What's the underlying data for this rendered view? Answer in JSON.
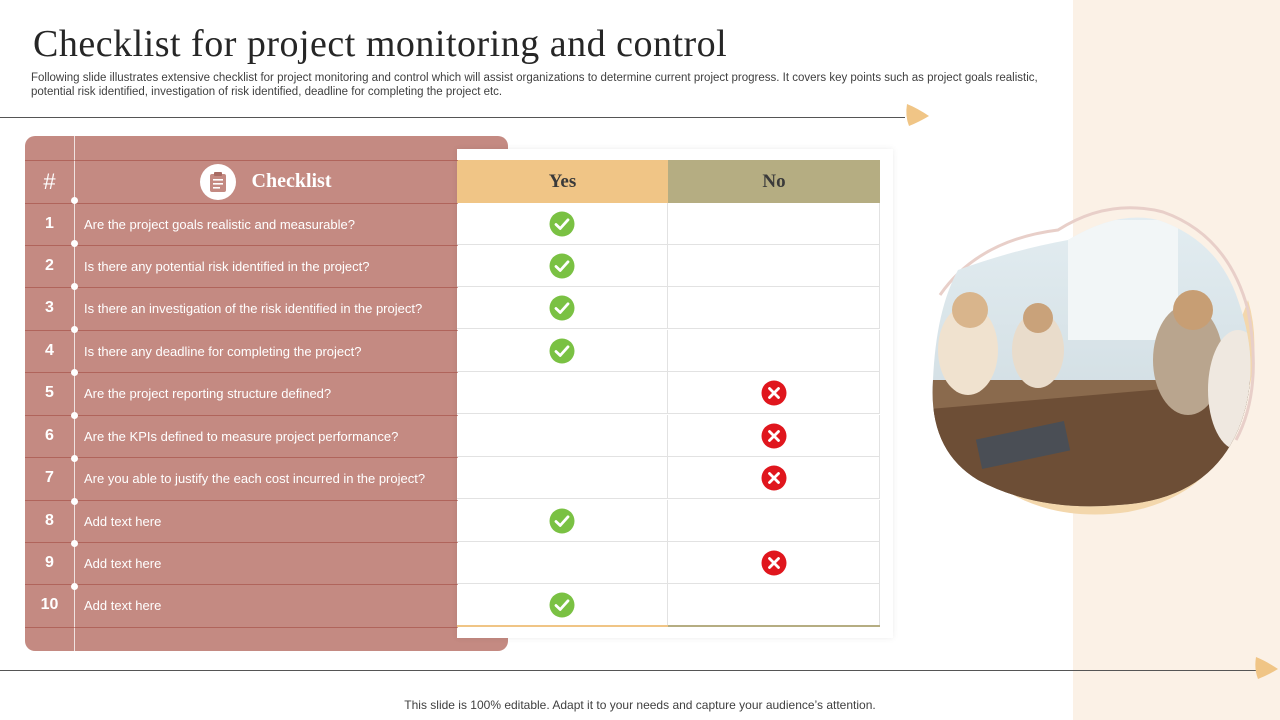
{
  "title": "Checklist for project monitoring and control",
  "subtitle": "Following slide illustrates extensive checklist for project monitoring and control which will assist organizations to determine current project progress. It covers key points such as project goals realistic, potential risk identified, investigation of risk identified, deadline for completing the project etc.",
  "table": {
    "header_number": "#",
    "header_checklist": "Checklist",
    "header_yes": "Yes",
    "header_no": "No",
    "rows": [
      {
        "num": "1",
        "text": "Are the project goals realistic and measurable?",
        "answer": "yes"
      },
      {
        "num": "2",
        "text": "Is there any potential risk identified in the project?",
        "answer": "yes"
      },
      {
        "num": "3",
        "text": "Is there an investigation of the risk identified in the project?",
        "answer": "yes"
      },
      {
        "num": "4",
        "text": "Is there any deadline for completing the project?",
        "answer": "yes"
      },
      {
        "num": "5",
        "text": "Are the project reporting structure defined?",
        "answer": "no"
      },
      {
        "num": "6",
        "text": "Are the KPIs defined to measure project performance?",
        "answer": "no"
      },
      {
        "num": "7",
        "text": "Are you able to justify the each cost incurred in the project?",
        "answer": "no"
      },
      {
        "num": "8",
        "text": "Add text here",
        "answer": "yes"
      },
      {
        "num": "9",
        "text": "Add text here",
        "answer": "no"
      },
      {
        "num": "10",
        "text": "Add text here",
        "answer": "yes"
      }
    ]
  },
  "icons": {
    "header_badge": "clipboard-icon",
    "yes_mark": "check-circle-icon",
    "no_mark": "cross-circle-icon"
  },
  "colors": {
    "checklist_panel": "#c48a82",
    "yes_header": "#f0c586",
    "no_header": "#b5ad82",
    "check_green": "#7ac143",
    "cross_red": "#e0161d",
    "side_panel": "#fbf1e6"
  },
  "footer": "This slide is 100% editable. Adapt it to your needs and capture your audience’s attention."
}
